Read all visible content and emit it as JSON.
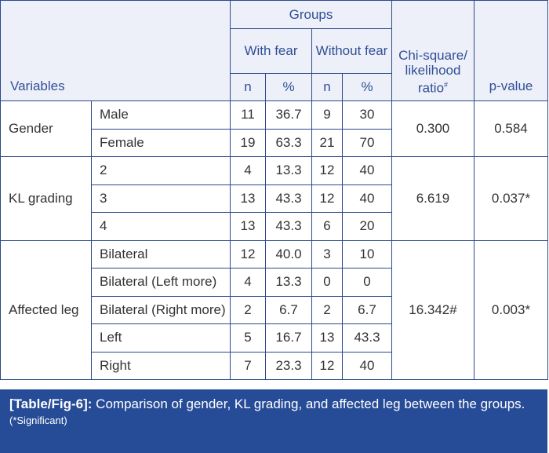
{
  "header": {
    "variables": "Variables",
    "groups": "Groups",
    "with_fear": "With fear",
    "without_fear": "Without fear",
    "n": "n",
    "percent": "%",
    "chi_square": "Chi-square/ likelihood ratio",
    "chi_sup": "#",
    "p_value": "p-value"
  },
  "groups": [
    {
      "variable": "Gender",
      "chi": "0.300",
      "p": "0.584",
      "rows": [
        {
          "level": "Male",
          "n1": "11",
          "p1": "36.7",
          "n2": "9",
          "p2": "30"
        },
        {
          "level": "Female",
          "n1": "19",
          "p1": "63.3",
          "n2": "21",
          "p2": "70"
        }
      ]
    },
    {
      "variable": "KL grading",
      "chi": "6.619",
      "p": "0.037*",
      "rows": [
        {
          "level": "2",
          "n1": "4",
          "p1": "13.3",
          "n2": "12",
          "p2": "40"
        },
        {
          "level": "3",
          "n1": "13",
          "p1": "43.3",
          "n2": "12",
          "p2": "40"
        },
        {
          "level": "4",
          "n1": "13",
          "p1": "43.3",
          "n2": "6",
          "p2": "20"
        }
      ]
    },
    {
      "variable": "Affected leg",
      "chi": "16.342#",
      "p": "0.003*",
      "rows": [
        {
          "level": "Bilateral",
          "n1": "12",
          "p1": "40.0",
          "n2": "3",
          "p2": "10"
        },
        {
          "level": "Bilateral (Left more)",
          "n1": "4",
          "p1": "13.3",
          "n2": "0",
          "p2": "0"
        },
        {
          "level": "Bilateral (Right more)",
          "n1": "2",
          "p1": "6.7",
          "n2": "2",
          "p2": "6.7"
        },
        {
          "level": "Left",
          "n1": "5",
          "p1": "16.7",
          "n2": "13",
          "p2": "43.3"
        },
        {
          "level": "Right",
          "n1": "7",
          "p1": "23.3",
          "n2": "12",
          "p2": "40"
        }
      ]
    }
  ],
  "caption": {
    "label": "[Table/Fig-6]:",
    "text": " Comparison of gender, KL grading, and affected leg between the groups.",
    "note": "(*Significant)"
  }
}
